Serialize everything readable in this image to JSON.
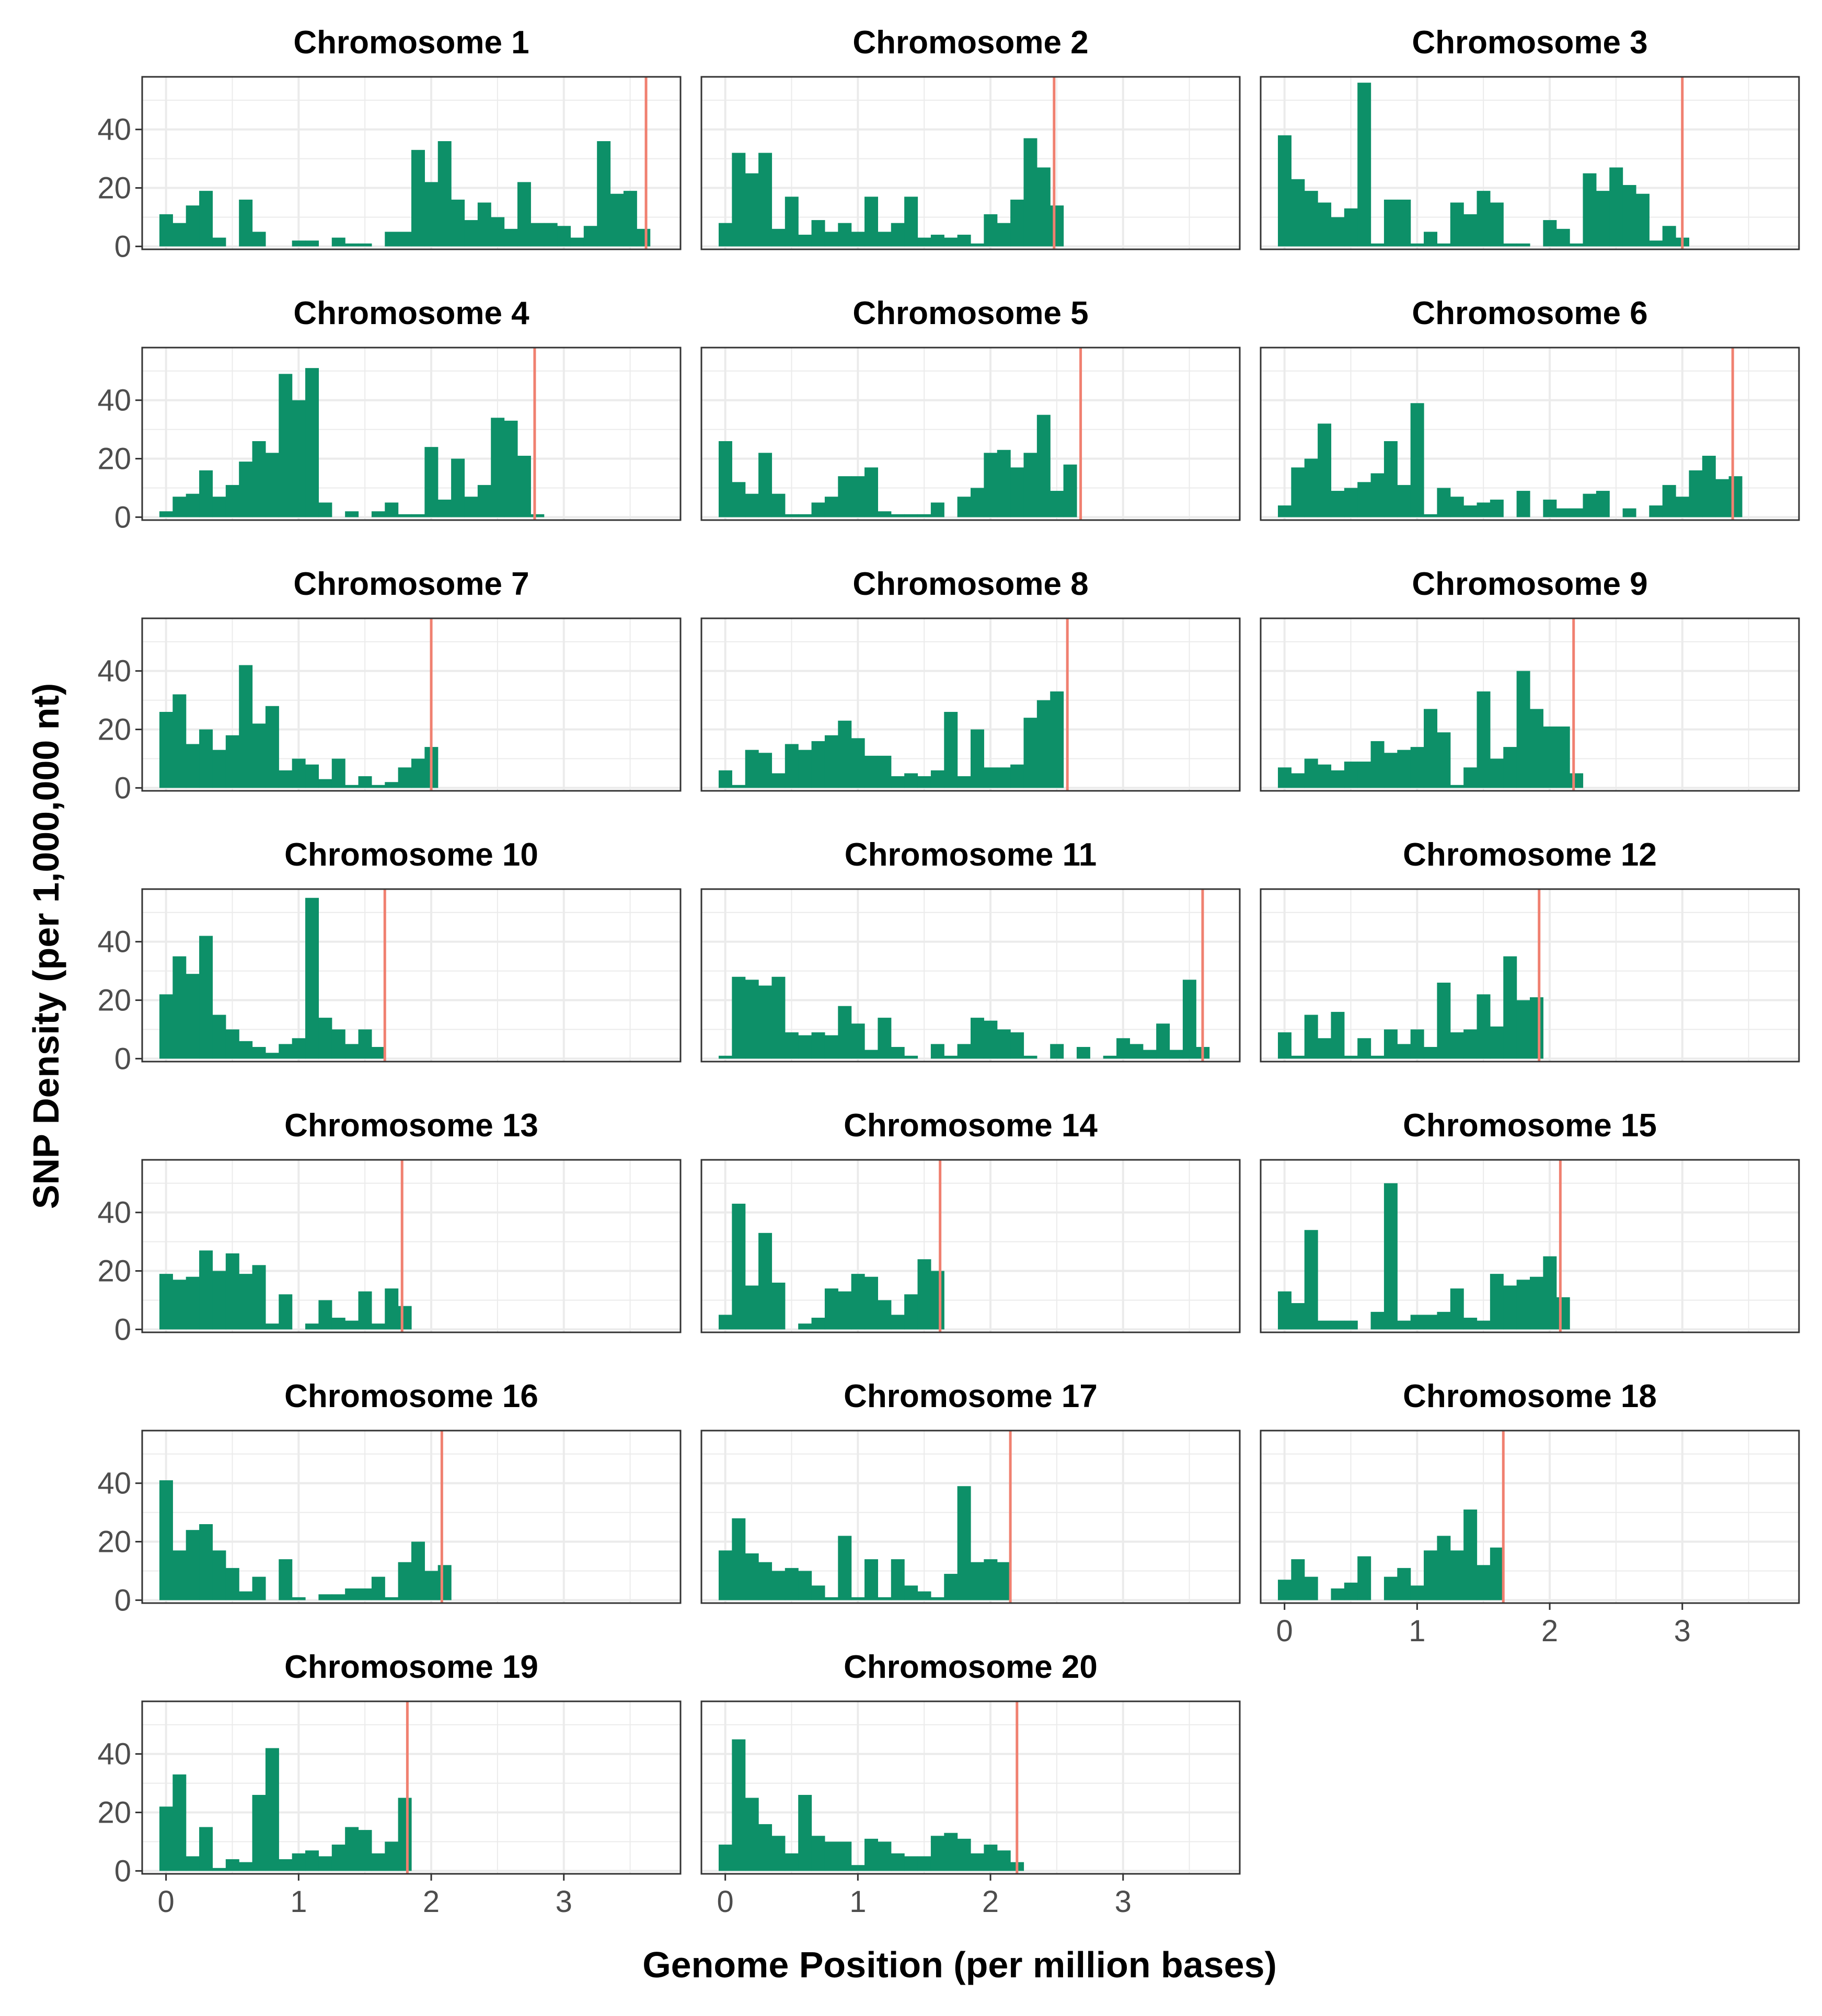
{
  "figure": {
    "xlabel": "Genome Position (per million bases)",
    "ylabel": "SNP Density (per 1,000,000 nt)"
  },
  "colors": {
    "bar": "#0d9068",
    "centromere": "#f08070",
    "grid": "#ebebeb",
    "panel_border": "#333333",
    "text": "#000000",
    "tick_text": "#4d4d4d",
    "background": "#ffffff"
  },
  "chart_data": {
    "type": "bar",
    "bin_width": 0.1,
    "xlim": [
      -0.18,
      3.88
    ],
    "ylim": [
      -1,
      58
    ],
    "x_ticks": [
      0,
      1,
      2,
      3
    ],
    "x_tick_labels": [
      "0",
      "1",
      "2",
      "3"
    ],
    "y_ticks": [
      0,
      20,
      40
    ],
    "y_tick_labels": [
      "0",
      "20",
      "40"
    ],
    "grid": true,
    "facets": [
      {
        "title": "Chromosome 1",
        "centromere": 3.62,
        "x": [
          0,
          0.1,
          0.2,
          0.3,
          0.4,
          0.6,
          0.7,
          1.0,
          1.1,
          1.3,
          1.4,
          1.5,
          1.7,
          1.8,
          1.9,
          2.0,
          2.1,
          2.2,
          2.3,
          2.4,
          2.5,
          2.6,
          2.7,
          2.8,
          2.9,
          3.0,
          3.1,
          3.2,
          3.3,
          3.4,
          3.5,
          3.6
        ],
        "values": [
          11,
          8,
          14,
          19,
          3,
          16,
          5,
          2,
          2,
          3,
          1,
          1,
          5,
          5,
          33,
          22,
          36,
          16,
          9,
          15,
          10,
          6,
          22,
          8,
          8,
          7,
          3,
          7,
          36,
          18,
          19,
          6
        ]
      },
      {
        "title": "Chromosome 2",
        "centromere": 2.48,
        "x": [
          0,
          0.1,
          0.2,
          0.3,
          0.4,
          0.5,
          0.6,
          0.7,
          0.8,
          0.9,
          1.0,
          1.1,
          1.2,
          1.3,
          1.4,
          1.5,
          1.6,
          1.7,
          1.8,
          1.9,
          2.0,
          2.1,
          2.2,
          2.3,
          2.4,
          2.5
        ],
        "values": [
          8,
          32,
          25,
          32,
          6,
          17,
          4,
          9,
          5,
          8,
          5,
          17,
          5,
          8,
          17,
          3,
          4,
          3,
          4,
          1,
          11,
          8,
          16,
          37,
          27,
          14
        ]
      },
      {
        "title": "Chromosome 3",
        "centromere": 3.0,
        "x": [
          0,
          0.1,
          0.2,
          0.3,
          0.4,
          0.5,
          0.6,
          0.7,
          0.8,
          0.9,
          1.0,
          1.1,
          1.2,
          1.3,
          1.4,
          1.5,
          1.6,
          1.7,
          1.8,
          2.0,
          2.1,
          2.2,
          2.3,
          2.4,
          2.5,
          2.6,
          2.7,
          2.8,
          2.9,
          3.0
        ],
        "values": [
          38,
          23,
          19,
          15,
          10,
          13,
          56,
          1,
          16,
          16,
          1,
          5,
          1,
          15,
          11,
          19,
          15,
          1,
          1,
          9,
          6,
          1,
          25,
          19,
          27,
          21,
          18,
          2,
          7,
          3
        ]
      },
      {
        "title": "Chromosome 4",
        "centromere": 2.78,
        "x": [
          0,
          0.1,
          0.2,
          0.3,
          0.4,
          0.5,
          0.6,
          0.7,
          0.8,
          0.9,
          1.0,
          1.1,
          1.2,
          1.4,
          1.6,
          1.7,
          1.8,
          1.9,
          2.0,
          2.1,
          2.2,
          2.3,
          2.4,
          2.5,
          2.6,
          2.7,
          2.8
        ],
        "values": [
          2,
          7,
          8,
          16,
          7,
          11,
          19,
          26,
          22,
          49,
          40,
          51,
          5,
          2,
          2,
          5,
          1,
          1,
          24,
          6,
          20,
          7,
          11,
          34,
          33,
          21,
          1
        ]
      },
      {
        "title": "Chromosome 5",
        "centromere": 2.68,
        "x": [
          0,
          0.1,
          0.2,
          0.3,
          0.4,
          0.5,
          0.6,
          0.7,
          0.8,
          0.9,
          1.0,
          1.1,
          1.2,
          1.3,
          1.4,
          1.5,
          1.6,
          1.8,
          1.9,
          2.0,
          2.1,
          2.2,
          2.3,
          2.4,
          2.5,
          2.6
        ],
        "values": [
          26,
          12,
          8,
          22,
          8,
          1,
          1,
          5,
          7,
          14,
          14,
          17,
          2,
          1,
          1,
          1,
          5,
          7,
          10,
          22,
          23,
          17,
          22,
          35,
          9,
          18
        ]
      },
      {
        "title": "Chromosome 6",
        "centromere": 3.38,
        "x": [
          0,
          0.1,
          0.2,
          0.3,
          0.4,
          0.5,
          0.6,
          0.7,
          0.8,
          0.9,
          1.0,
          1.1,
          1.2,
          1.3,
          1.4,
          1.5,
          1.6,
          1.8,
          2.0,
          2.1,
          2.2,
          2.3,
          2.4,
          2.6,
          2.8,
          2.9,
          3.0,
          3.1,
          3.2,
          3.3,
          3.4
        ],
        "values": [
          4,
          17,
          20,
          32,
          9,
          10,
          12,
          15,
          26,
          11,
          39,
          1,
          10,
          7,
          4,
          5,
          6,
          9,
          6,
          3,
          3,
          8,
          9,
          3,
          4,
          11,
          7,
          16,
          21,
          13,
          14
        ]
      },
      {
        "title": "Chromosome 7",
        "centromere": 2.0,
        "x": [
          0,
          0.1,
          0.2,
          0.3,
          0.4,
          0.5,
          0.6,
          0.7,
          0.8,
          0.9,
          1.0,
          1.1,
          1.2,
          1.3,
          1.4,
          1.5,
          1.6,
          1.7,
          1.8,
          1.9,
          2.0
        ],
        "values": [
          26,
          32,
          15,
          20,
          13,
          18,
          42,
          22,
          28,
          6,
          10,
          8,
          3,
          10,
          1,
          4,
          1,
          2,
          7,
          10,
          14
        ]
      },
      {
        "title": "Chromosome 8",
        "centromere": 2.58,
        "x": [
          0,
          0.1,
          0.2,
          0.3,
          0.4,
          0.5,
          0.6,
          0.7,
          0.8,
          0.9,
          1.0,
          1.1,
          1.2,
          1.3,
          1.4,
          1.5,
          1.6,
          1.7,
          1.8,
          1.9,
          2.0,
          2.1,
          2.2,
          2.3,
          2.4,
          2.5
        ],
        "values": [
          6,
          1,
          13,
          12,
          5,
          15,
          13,
          16,
          18,
          23,
          17,
          11,
          11,
          4,
          5,
          4,
          6,
          26,
          4,
          20,
          7,
          7,
          8,
          24,
          30,
          33
        ]
      },
      {
        "title": "Chromosome 9",
        "centromere": 2.18,
        "x": [
          0,
          0.1,
          0.2,
          0.3,
          0.4,
          0.5,
          0.6,
          0.7,
          0.8,
          0.9,
          1.0,
          1.1,
          1.2,
          1.3,
          1.4,
          1.5,
          1.6,
          1.7,
          1.8,
          1.9,
          2.0,
          2.1,
          2.2
        ],
        "values": [
          7,
          5,
          10,
          8,
          6,
          9,
          9,
          16,
          12,
          13,
          14,
          27,
          19,
          1,
          7,
          33,
          10,
          14,
          40,
          27,
          21,
          21,
          5
        ]
      },
      {
        "title": "Chromosome 10",
        "centromere": 1.65,
        "x": [
          0,
          0.1,
          0.2,
          0.3,
          0.4,
          0.5,
          0.6,
          0.7,
          0.8,
          0.9,
          1.0,
          1.1,
          1.2,
          1.3,
          1.4,
          1.5,
          1.6
        ],
        "values": [
          22,
          35,
          29,
          42,
          15,
          10,
          6,
          4,
          2,
          5,
          7,
          55,
          14,
          10,
          5,
          10,
          4
        ]
      },
      {
        "title": "Chromosome 11",
        "centromere": 3.6,
        "x": [
          0,
          0.1,
          0.2,
          0.3,
          0.4,
          0.5,
          0.6,
          0.7,
          0.8,
          0.9,
          1.0,
          1.1,
          1.2,
          1.3,
          1.4,
          1.6,
          1.7,
          1.8,
          1.9,
          2.0,
          2.1,
          2.2,
          2.3,
          2.5,
          2.7,
          2.9,
          3.0,
          3.1,
          3.2,
          3.3,
          3.4,
          3.5,
          3.6
        ],
        "values": [
          1,
          28,
          27,
          25,
          28,
          9,
          8,
          9,
          8,
          18,
          12,
          3,
          14,
          4,
          1,
          5,
          1,
          5,
          14,
          13,
          10,
          9,
          1,
          5,
          4,
          1,
          7,
          5,
          3,
          12,
          3,
          27,
          4
        ]
      },
      {
        "title": "Chromosome 12",
        "centromere": 1.92,
        "x": [
          0,
          0.1,
          0.2,
          0.3,
          0.4,
          0.5,
          0.6,
          0.7,
          0.8,
          0.9,
          1.0,
          1.1,
          1.2,
          1.3,
          1.4,
          1.5,
          1.6,
          1.7,
          1.8,
          1.9
        ],
        "values": [
          9,
          1,
          15,
          7,
          16,
          1,
          7,
          1,
          10,
          5,
          10,
          4,
          26,
          9,
          10,
          22,
          11,
          35,
          20,
          21
        ]
      },
      {
        "title": "Chromosome 13",
        "centromere": 1.78,
        "x": [
          0,
          0.1,
          0.2,
          0.3,
          0.4,
          0.5,
          0.6,
          0.7,
          0.8,
          0.9,
          1.1,
          1.2,
          1.3,
          1.4,
          1.5,
          1.6,
          1.7,
          1.8
        ],
        "values": [
          19,
          17,
          18,
          27,
          20,
          26,
          19,
          22,
          2,
          12,
          2,
          10,
          4,
          3,
          13,
          2,
          14,
          8
        ]
      },
      {
        "title": "Chromosome 14",
        "centromere": 1.62,
        "x": [
          0,
          0.1,
          0.2,
          0.3,
          0.4,
          0.6,
          0.7,
          0.8,
          0.9,
          1.0,
          1.1,
          1.2,
          1.3,
          1.4,
          1.5,
          1.6
        ],
        "values": [
          5,
          43,
          15,
          33,
          16,
          2,
          4,
          14,
          13,
          19,
          18,
          10,
          5,
          12,
          24,
          20
        ]
      },
      {
        "title": "Chromosome 15",
        "centromere": 2.08,
        "x": [
          0,
          0.1,
          0.2,
          0.3,
          0.4,
          0.5,
          0.7,
          0.8,
          0.9,
          1.0,
          1.1,
          1.2,
          1.3,
          1.4,
          1.5,
          1.6,
          1.7,
          1.8,
          1.9,
          2.0,
          2.1
        ],
        "values": [
          13,
          9,
          34,
          3,
          3,
          3,
          6,
          50,
          3,
          5,
          5,
          6,
          14,
          4,
          3,
          19,
          15,
          17,
          18,
          25,
          11
        ]
      },
      {
        "title": "Chromosome 16",
        "centromere": 2.08,
        "x": [
          0,
          0.1,
          0.2,
          0.3,
          0.4,
          0.5,
          0.6,
          0.7,
          0.9,
          1.0,
          1.2,
          1.3,
          1.4,
          1.5,
          1.6,
          1.7,
          1.8,
          1.9,
          2.0,
          2.1
        ],
        "values": [
          41,
          17,
          24,
          26,
          17,
          11,
          3,
          8,
          14,
          1,
          2,
          2,
          4,
          4,
          8,
          1,
          13,
          20,
          10,
          12
        ]
      },
      {
        "title": "Chromosome 17",
        "centromere": 2.15,
        "x": [
          0,
          0.1,
          0.2,
          0.3,
          0.4,
          0.5,
          0.6,
          0.7,
          0.8,
          0.9,
          1.0,
          1.1,
          1.2,
          1.3,
          1.4,
          1.5,
          1.6,
          1.7,
          1.8,
          1.9,
          2.0,
          2.1
        ],
        "values": [
          17,
          28,
          16,
          13,
          10,
          11,
          10,
          5,
          1,
          22,
          1,
          14,
          1,
          14,
          5,
          3,
          1,
          9,
          39,
          13,
          14,
          13
        ]
      },
      {
        "title": "Chromosome 18",
        "centromere": 1.65,
        "x": [
          0,
          0.1,
          0.2,
          0.4,
          0.5,
          0.6,
          0.8,
          0.9,
          1.0,
          1.1,
          1.2,
          1.3,
          1.4,
          1.5,
          1.6
        ],
        "values": [
          7,
          14,
          8,
          4,
          6,
          15,
          8,
          11,
          5,
          17,
          22,
          17,
          31,
          12,
          18
        ]
      },
      {
        "title": "Chromosome 19",
        "centromere": 1.82,
        "x": [
          0,
          0.1,
          0.2,
          0.3,
          0.4,
          0.5,
          0.6,
          0.7,
          0.8,
          0.9,
          1.0,
          1.1,
          1.2,
          1.3,
          1.4,
          1.5,
          1.6,
          1.7,
          1.8
        ],
        "values": [
          22,
          33,
          5,
          15,
          1,
          4,
          3,
          26,
          42,
          4,
          6,
          7,
          5,
          9,
          15,
          14,
          6,
          10,
          25
        ]
      },
      {
        "title": "Chromosome 20",
        "centromere": 2.2,
        "x": [
          0,
          0.1,
          0.2,
          0.3,
          0.4,
          0.5,
          0.6,
          0.7,
          0.8,
          0.9,
          1.0,
          1.1,
          1.2,
          1.3,
          1.4,
          1.5,
          1.6,
          1.7,
          1.8,
          1.9,
          2.0,
          2.1,
          2.2
        ],
        "values": [
          9,
          45,
          25,
          16,
          12,
          6,
          26,
          12,
          10,
          10,
          2,
          11,
          10,
          6,
          5,
          5,
          12,
          13,
          11,
          6,
          9,
          7,
          3
        ]
      }
    ]
  }
}
